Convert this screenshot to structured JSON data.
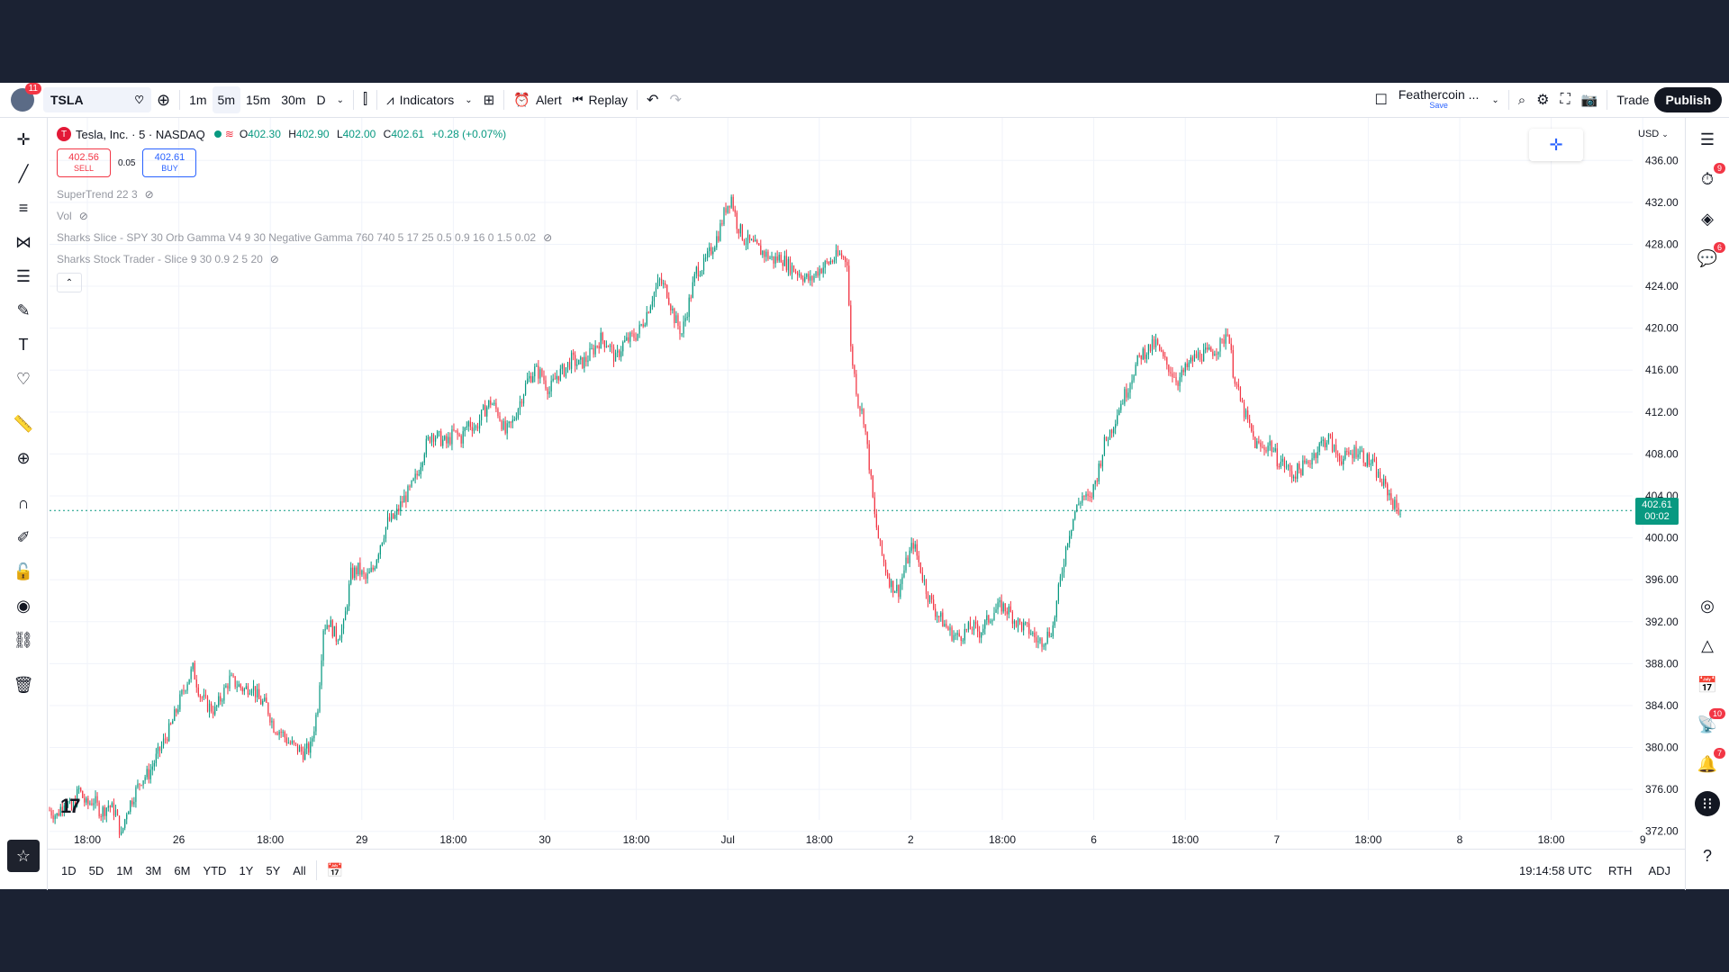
{
  "topbar": {
    "notification_count": "11",
    "symbol": "TSLA",
    "timeframes": [
      "1m",
      "5m",
      "15m",
      "30m",
      "D"
    ],
    "active_timeframe": "5m",
    "indicators_label": "Indicators",
    "alert_label": "Alert",
    "replay_label": "Replay",
    "layout_name": "Feathercoin ...",
    "layout_sub": "Save",
    "trade_label": "Trade",
    "publish_label": "Publish"
  },
  "legend": {
    "title": "Tesla, Inc. · 5 · NASDAQ",
    "open": "402.30",
    "high": "402.90",
    "low": "402.00",
    "close": "402.61",
    "change": "+0.28 (+0.07%)",
    "sell_price": "402.56",
    "sell_label": "SELL",
    "spread": "0.05",
    "buy_price": "402.61",
    "buy_label": "BUY",
    "indicators": [
      "SuperTrend 22 3",
      "Vol",
      "Sharks Slice - SPY 30 Orb Gamma V4 9 30 Negative Gamma 760 740 5 17 25 0.5 0.9 16 0 1.5 0.02",
      "Sharks Stock Trader - Slice 9 30 0.9 2 5 20"
    ]
  },
  "price_axis": {
    "currency": "USD",
    "current_price": "402.61",
    "countdown": "00:02"
  },
  "bottombar": {
    "ranges": [
      "1D",
      "5D",
      "1M",
      "3M",
      "6M",
      "YTD",
      "1Y",
      "5Y",
      "All"
    ],
    "time": "19:14:58 UTC",
    "session": "RTH",
    "adj": "ADJ"
  },
  "rightbar_badges": {
    "alerts_badge": "9",
    "chats_badge": "6",
    "news_badge": "10",
    "notifications_badge": "7"
  },
  "colors": {
    "up": "#089981",
    "down": "#f23645",
    "accent": "#2962ff"
  },
  "chart_data": {
    "type": "candlestick",
    "symbol": "TSLA",
    "ylim": [
      370,
      438
    ],
    "yticks": [
      372,
      376,
      380,
      384,
      388,
      392,
      396,
      400,
      404,
      408,
      412,
      416,
      420,
      424,
      428,
      432,
      436
    ],
    "xticks": [
      "18:00",
      "26",
      "18:00",
      "29",
      "18:00",
      "30",
      "18:00",
      "Jul",
      "18:00",
      "2",
      "18:00",
      "6",
      "18:00",
      "7",
      "18:00",
      "8",
      "18:00",
      "9"
    ],
    "path": [
      [
        0,
        374
      ],
      [
        4,
        373.5
      ],
      [
        8,
        375
      ],
      [
        12,
        374
      ],
      [
        16,
        376
      ],
      [
        20,
        374.5
      ],
      [
        24,
        375
      ],
      [
        28,
        373.8
      ],
      [
        32,
        374.5
      ],
      [
        36,
        373.8
      ],
      [
        39,
        371.5
      ],
      [
        42,
        374
      ],
      [
        46,
        375.5
      ],
      [
        50,
        377
      ],
      [
        54,
        377.5
      ],
      [
        58,
        379
      ],
      [
        62,
        380.5
      ],
      [
        66,
        382
      ],
      [
        70,
        384
      ],
      [
        74,
        386
      ],
      [
        78,
        387.5
      ],
      [
        82,
        385
      ],
      [
        86,
        384
      ],
      [
        90,
        383.5
      ],
      [
        94,
        385
      ],
      [
        98,
        386.5
      ],
      [
        102,
        386
      ],
      [
        106,
        385.5
      ],
      [
        110,
        386
      ],
      [
        114,
        384.5
      ],
      [
        118,
        384
      ],
      [
        122,
        382
      ],
      [
        126,
        381.5
      ],
      [
        130,
        380.5
      ],
      [
        134,
        380
      ],
      [
        138,
        379.5
      ],
      [
        142,
        380
      ],
      [
        146,
        384
      ],
      [
        149,
        391.5
      ],
      [
        152,
        392
      ],
      [
        156,
        390.5
      ],
      [
        160,
        391.5
      ],
      [
        164,
        396.5
      ],
      [
        168,
        397
      ],
      [
        172,
        396
      ],
      [
        176,
        397
      ],
      [
        180,
        399.5
      ],
      [
        184,
        401.5
      ],
      [
        188,
        402
      ],
      [
        192,
        403.5
      ],
      [
        196,
        404.5
      ],
      [
        200,
        406
      ],
      [
        204,
        408.5
      ],
      [
        208,
        410
      ],
      [
        212,
        409.5
      ],
      [
        216,
        409
      ],
      [
        220,
        410
      ],
      [
        224,
        409.5
      ],
      [
        228,
        411
      ],
      [
        232,
        410.5
      ],
      [
        236,
        412
      ],
      [
        240,
        413
      ],
      [
        244,
        412
      ],
      [
        248,
        410
      ],
      [
        252,
        411
      ],
      [
        256,
        413
      ],
      [
        260,
        415
      ],
      [
        264,
        416
      ],
      [
        268,
        415.5
      ],
      [
        272,
        414
      ],
      [
        276,
        415.5
      ],
      [
        280,
        416
      ],
      [
        284,
        417
      ],
      [
        288,
        416.5
      ],
      [
        292,
        417
      ],
      [
        296,
        418
      ],
      [
        300,
        419
      ],
      [
        304,
        418.5
      ],
      [
        308,
        417
      ],
      [
        312,
        418.5
      ],
      [
        316,
        419
      ],
      [
        320,
        419.5
      ],
      [
        324,
        421
      ],
      [
        328,
        423
      ],
      [
        332,
        424.5
      ],
      [
        336,
        423.5
      ],
      [
        340,
        421
      ],
      [
        344,
        419.5
      ],
      [
        348,
        422.5
      ],
      [
        352,
        425.5
      ],
      [
        356,
        426
      ],
      [
        360,
        427.5
      ],
      [
        364,
        429
      ],
      [
        368,
        431.5
      ],
      [
        371,
        432.5
      ],
      [
        374,
        430
      ],
      [
        378,
        428.5
      ],
      [
        382,
        428
      ],
      [
        386,
        427.5
      ],
      [
        390,
        427
      ],
      [
        394,
        426.5
      ],
      [
        398,
        426.8
      ],
      [
        402,
        426
      ],
      [
        406,
        425.5
      ],
      [
        410,
        425
      ],
      [
        414,
        424.5
      ],
      [
        418,
        425.5
      ],
      [
        422,
        426
      ],
      [
        426,
        426.5
      ],
      [
        430,
        427
      ],
      [
        434,
        426.5
      ],
      [
        436,
        418
      ],
      [
        440,
        413
      ],
      [
        443,
        411.5
      ],
      [
        446,
        407
      ],
      [
        449,
        402
      ],
      [
        452,
        399
      ],
      [
        455,
        397
      ],
      [
        458,
        395.5
      ],
      [
        462,
        395
      ],
      [
        466,
        397.5
      ],
      [
        470,
        399.5
      ],
      [
        474,
        397
      ],
      [
        478,
        394.5
      ],
      [
        482,
        393
      ],
      [
        486,
        392
      ],
      [
        490,
        391
      ],
      [
        494,
        390.5
      ],
      [
        498,
        391
      ],
      [
        502,
        391.5
      ],
      [
        506,
        391
      ],
      [
        510,
        392
      ],
      [
        514,
        393
      ],
      [
        518,
        393.5
      ],
      [
        522,
        393
      ],
      [
        526,
        392
      ],
      [
        530,
        391.5
      ],
      [
        534,
        391
      ],
      [
        538,
        390
      ],
      [
        542,
        390.5
      ],
      [
        546,
        391.5
      ],
      [
        550,
        396
      ],
      [
        554,
        400
      ],
      [
        558,
        402.5
      ],
      [
        562,
        404
      ],
      [
        566,
        403.5
      ],
      [
        570,
        406
      ],
      [
        574,
        409
      ],
      [
        578,
        410.5
      ],
      [
        582,
        412.5
      ],
      [
        586,
        414
      ],
      [
        590,
        416
      ],
      [
        594,
        417.5
      ],
      [
        598,
        418
      ],
      [
        602,
        418.5
      ],
      [
        606,
        417
      ],
      [
        610,
        416
      ],
      [
        614,
        415
      ],
      [
        618,
        416
      ],
      [
        622,
        417
      ],
      [
        626,
        417.5
      ],
      [
        630,
        417.5
      ],
      [
        634,
        418
      ],
      [
        638,
        418.5
      ],
      [
        641,
        420
      ],
      [
        644,
        416
      ],
      [
        648,
        413
      ],
      [
        652,
        411
      ],
      [
        656,
        409
      ],
      [
        660,
        408.5
      ],
      [
        664,
        409
      ],
      [
        668,
        407.5
      ],
      [
        672,
        407
      ],
      [
        676,
        406
      ],
      [
        680,
        406.5
      ],
      [
        684,
        407
      ],
      [
        688,
        408
      ],
      [
        692,
        409
      ],
      [
        696,
        409.5
      ],
      [
        700,
        408
      ],
      [
        704,
        407.5
      ],
      [
        708,
        408
      ],
      [
        712,
        408.5
      ],
      [
        716,
        407.5
      ],
      [
        720,
        407
      ],
      [
        724,
        405.5
      ],
      [
        728,
        404.5
      ],
      [
        732,
        403
      ],
      [
        735,
        402.61
      ]
    ]
  }
}
